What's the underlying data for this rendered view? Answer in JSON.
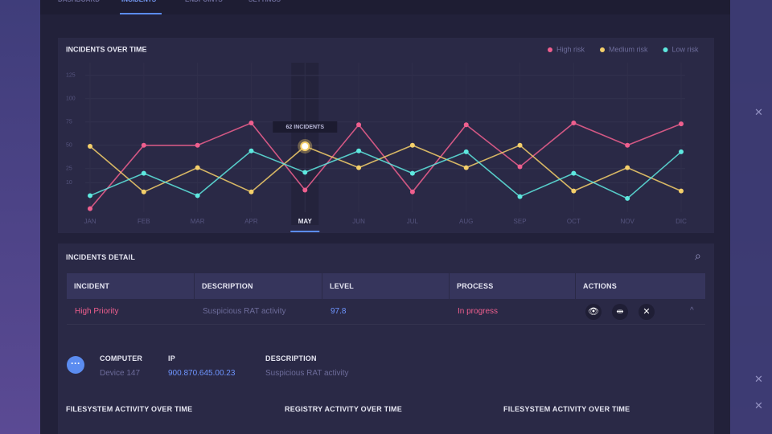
{
  "nav": {
    "tabs": [
      "DASHBOARD",
      "INCIDENTS",
      "ENDPOINTS",
      "SETTINGS"
    ],
    "active": "INCIDENTS"
  },
  "chart_data": {
    "type": "line",
    "title": "INCIDENTS OVER TIME",
    "categories": [
      "JAN",
      "FEB",
      "MAR",
      "APR",
      "MAY",
      "JUN",
      "JUL",
      "AUG",
      "SEP",
      "OCT",
      "NOV",
      "DIC"
    ],
    "series": [
      {
        "name": "High risk",
        "color": "#ef5f8e",
        "values": [
          -18,
          50,
          50,
          74,
          2,
          72,
          0,
          72,
          27,
          74,
          50,
          73
        ]
      },
      {
        "name": "Medium risk",
        "color": "#f4cf6a",
        "values": [
          49,
          0,
          26,
          0,
          49,
          26,
          50,
          26,
          50,
          1,
          26,
          1
        ]
      },
      {
        "name": "Low risk",
        "color": "#5ee8df",
        "values": [
          -4,
          20,
          -4,
          44,
          21,
          44,
          20,
          43,
          -5,
          20,
          -7,
          43
        ]
      }
    ],
    "ylim": [
      -20,
      130
    ],
    "yticks": [
      10,
      25,
      50,
      75,
      100,
      125
    ],
    "grid": true,
    "legend": "top-right",
    "active_category": "MAY",
    "tooltip": "62 INCIDENTS"
  },
  "detail": {
    "title": "INCIDENTS DETAIL",
    "columns": [
      "INCIDENT",
      "DESCRIPTION",
      "LEVEL",
      "PROCESS",
      "ACTIONS"
    ],
    "rows": [
      [
        "High Priority",
        "Suspicious RAT activity",
        "97.8",
        "In progress"
      ]
    ],
    "fields": [
      {
        "label": "COMPUTER",
        "value": "Device 147"
      },
      {
        "label": "IP",
        "value": "900.870.645.00.23"
      },
      {
        "label": "DESCRIPTION",
        "value": "Suspicious RAT activity"
      }
    ],
    "sections": [
      "FILESYSTEM ACTIVITY OVER TIME",
      "REGISTRY ACTIVITY OVER TIME",
      "FILESYSTEM ACTIVITY OVER TIME"
    ]
  }
}
